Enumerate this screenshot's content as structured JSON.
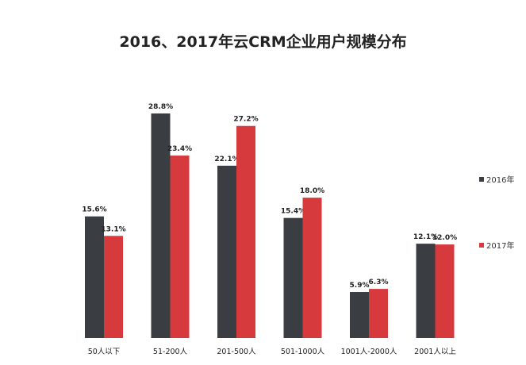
{
  "chart_data": {
    "type": "bar",
    "title": "2016、2017年云CRM企业用户规模分布",
    "categories": [
      "50人以下",
      "51-200人",
      "201-500人",
      "501-1000人",
      "1001人-2000人",
      "2001人以上"
    ],
    "series": [
      {
        "name": "2016年",
        "color": "#3a3d41",
        "values": [
          15.6,
          28.8,
          22.1,
          15.4,
          5.9,
          12.1
        ],
        "labels": [
          "15.6%",
          "28.8%",
          "22.1%",
          "15.4%",
          "5.9%",
          "12.1%"
        ]
      },
      {
        "name": "2017年",
        "color": "#d63a3c",
        "values": [
          13.1,
          23.4,
          27.2,
          18.0,
          6.3,
          12.0
        ],
        "labels": [
          "13.1%",
          "23.4%",
          "27.2%",
          "18.0%",
          "6.3%",
          "12.0%"
        ]
      }
    ],
    "unit": "%",
    "ylim": [
      0,
      28.8
    ],
    "grid": false,
    "legend_position": "right"
  }
}
